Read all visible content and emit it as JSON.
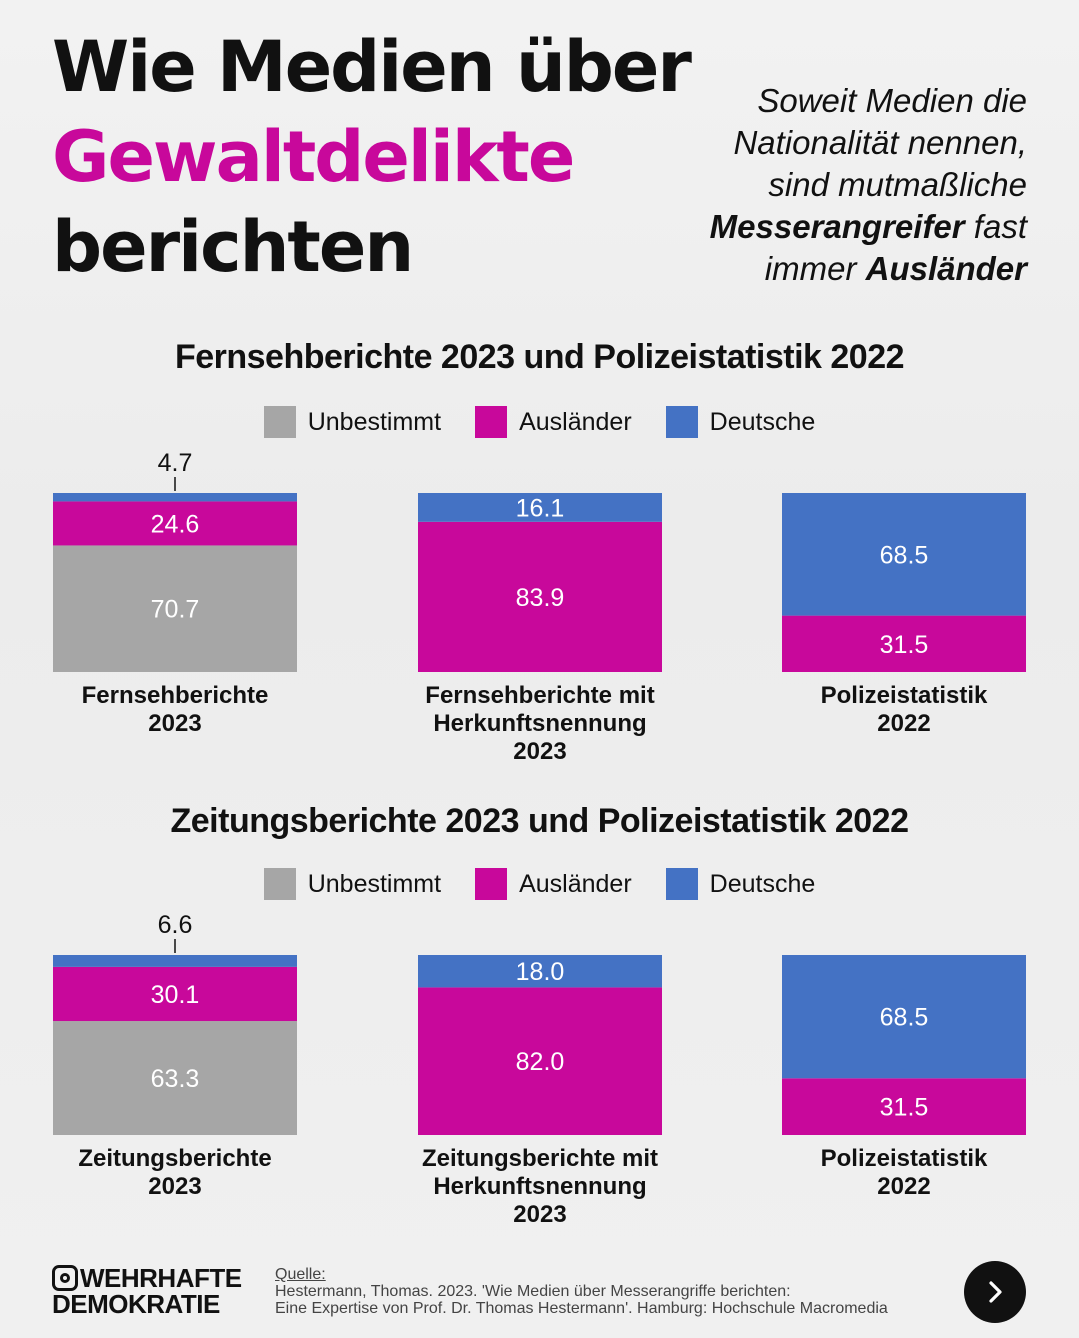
{
  "headline": {
    "line1": "Wie Medien über",
    "line2": "Gewaltdelikte",
    "line3": "berichten"
  },
  "lead": {
    "l1": "Soweit Medien die",
    "l2": "Nationalität nennen,",
    "l3": "sind mutmaßliche",
    "l4_bold": "Messerangreifer",
    "l4_rest": " fast",
    "l5_pre": "immer ",
    "l5_bold": "Ausländer"
  },
  "colors": {
    "unbestimmt": "#a6a6a6",
    "auslaender": "#c8089b",
    "deutsche": "#4472c4",
    "accent": "#c8089b"
  },
  "legend": {
    "unbestimmt": "Unbestimmt",
    "auslaender": "Ausländer",
    "deutsche": "Deutsche"
  },
  "chart_data": [
    {
      "type": "bar",
      "title": "Fernsehberichte 2023 und Polizeistatistik 2022",
      "stacked": true,
      "categories": [
        [
          "Fernsehberichte",
          "2023"
        ],
        [
          "Fernsehberichte mit",
          "Herkunftsnennung",
          "2023"
        ],
        [
          "Polizeistatistik",
          "2022"
        ]
      ],
      "series": [
        {
          "name": "Unbestimmt",
          "key": "unbestimmt",
          "values": [
            70.7,
            null,
            null
          ],
          "labels": [
            "70.7",
            "",
            ""
          ]
        },
        {
          "name": "Ausländer",
          "key": "auslaender",
          "values": [
            24.6,
            83.9,
            31.5
          ],
          "labels": [
            "24.6",
            "83.9",
            "31.5"
          ]
        },
        {
          "name": "Deutsche",
          "key": "deutsche",
          "values": [
            4.7,
            16.1,
            68.5
          ],
          "labels": [
            "4.7",
            "16.1",
            "68.5"
          ]
        }
      ],
      "ylim": [
        0,
        100
      ]
    },
    {
      "type": "bar",
      "title": "Zeitungsberichte 2023 und Polizeistatistik 2022",
      "stacked": true,
      "categories": [
        [
          "Zeitungsberichte",
          "2023"
        ],
        [
          "Zeitungsberichte mit",
          "Herkunftsnennung",
          "2023"
        ],
        [
          "Polizeistatistik",
          "2022"
        ]
      ],
      "series": [
        {
          "name": "Unbestimmt",
          "key": "unbestimmt",
          "values": [
            63.3,
            null,
            null
          ],
          "labels": [
            "63.3",
            "",
            ""
          ]
        },
        {
          "name": "Ausländer",
          "key": "auslaender",
          "values": [
            30.1,
            82.0,
            31.5
          ],
          "labels": [
            "30.1",
            "82.0",
            "31.5"
          ]
        },
        {
          "name": "Deutsche",
          "key": "deutsche",
          "values": [
            6.6,
            18.0,
            68.5
          ],
          "labels": [
            "6.6",
            "18.0",
            "68.5"
          ]
        }
      ],
      "ylim": [
        0,
        100
      ]
    }
  ],
  "footer": {
    "brand_line1": "WEHRHAFTE",
    "brand_line2": "DEMOKRATIE",
    "source_label": "Quelle:",
    "source_line1": "Hestermann, Thomas. 2023. 'Wie Medien über Messerangriffe berichten:",
    "source_line2": "Eine Expertise von Prof. Dr. Thomas Hestermann'. Hamburg: Hochschule Macromedia",
    "next_icon": "chevron-right-icon"
  }
}
